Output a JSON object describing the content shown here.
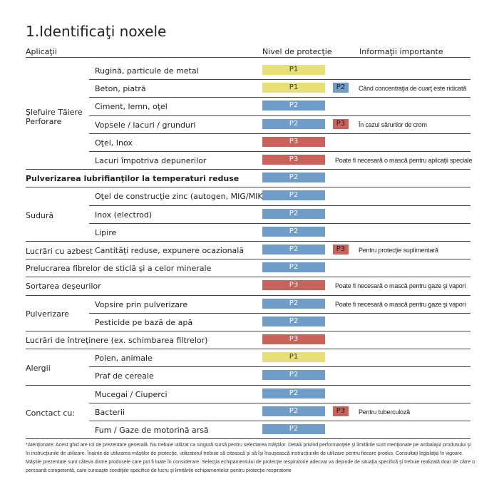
{
  "title": "1.Identificaţi noxele",
  "headers": [
    "Aplicaţii",
    "Nivel de protecţie",
    "Informaţii importante"
  ],
  "level_colors": {
    "P1": "#e8df78",
    "P2": "#6f9cc8",
    "P3": "#c8635b"
  },
  "sections": [
    {
      "label": "Şlefuire Tăiere Perforare",
      "items": [
        {
          "app": "Rugină, particule de metal",
          "level": "P1"
        },
        {
          "app": "Beton, piatră",
          "level": "P1",
          "extra": "P2",
          "info": "Când concentraţia de cuarţ este ridicată"
        },
        {
          "app": "Ciment, lemn, oţel",
          "level": "P2"
        },
        {
          "app": "Vopsele / lacuri / grunduri",
          "level": "P2",
          "extra": "P3",
          "info": "În cazul sărurilor de crom"
        },
        {
          "app": "Oţel, Inox",
          "level": "P3"
        },
        {
          "app": "Lacuri împotriva depunerilor",
          "level": "P3",
          "info": "Poate fi necesară o mască pentru aplicaţii speciale"
        }
      ]
    },
    {
      "label": "Pulverizarea lubrifianţilor la temperaturi reduse",
      "bold": true,
      "level": "P2"
    },
    {
      "label": "Sudură",
      "items": [
        {
          "app": "Oţel de construcţie zinc (autogen, MIG/MIK)",
          "level": "P2"
        },
        {
          "app": "Inox (electrod)",
          "level": "P2"
        },
        {
          "app": "Lipire",
          "level": "P2"
        }
      ]
    },
    {
      "label": "Lucrări cu azbest",
      "items": [
        {
          "app": "Cantităţi reduse, expunere ocazională",
          "level": "P2",
          "extra": "P3",
          "info": "Pentru protecţie suplimentară"
        }
      ]
    },
    {
      "label": "Prelucrarea fibrelor de sticlă şi a celor minerale",
      "level": "P2"
    },
    {
      "label": "Sortarea deşeurilor",
      "level": "P3",
      "info": "Poate fi necesară o mască pentru gaze şi vapori"
    },
    {
      "label": "Pulverizare",
      "items": [
        {
          "app": "Vopsire prin pulverizare",
          "level": "P2",
          "info": "Poate fi necesară o mască pentru gaze şi vapori"
        },
        {
          "app": "Pesticide pe bază de apă",
          "level": "P2"
        }
      ]
    },
    {
      "label": "Lucrări de întreţinere (ex. schimbarea filtrelor)",
      "level": "P3"
    },
    {
      "label": "Alergii",
      "items": [
        {
          "app": "Polen, animale",
          "level": "P1"
        },
        {
          "app": "Praf de cereale",
          "level": "P2"
        }
      ]
    },
    {
      "label": "Conctact cu:",
      "items": [
        {
          "app": "Mucegai / Ciuperci",
          "level": "P2"
        },
        {
          "app": "Bacterii",
          "level": "P2",
          "extra": "P3",
          "info": "Pentru tuberculoză"
        },
        {
          "app": "Fum / Gaze de motorină arsă",
          "level": "P2"
        }
      ]
    }
  ],
  "note": "*Atenţionare: Acest ghid are rol de prezentare generală. Nu trebuie utilizat ca singură sursă pentru selectarea măştilor. Detalii privind performanţele şi limitările sunt menţionate pe ambalajul produsului şi în instrucţiunile de utilizare. Înainte de utilizarea măştilor de protecţie, utilizatorul trebuie să citească şi să îşi însuşească instrucţiunile de utilizare pentru fiecare produs. Consultaţi legislaţia în vigoare. Măştile prezentate sunt câteva dintre produsele care pot fi luate în considerare. Selecţia echipamentului de protecţie respiratorie adecvat va depinde de situaţia specifică şi trebuie realizată doar de către o persoană competentă, care cunoaşte condiţiile specifice de lucru şi limitările echipamentelor pentru protecţie respiratorie"
}
